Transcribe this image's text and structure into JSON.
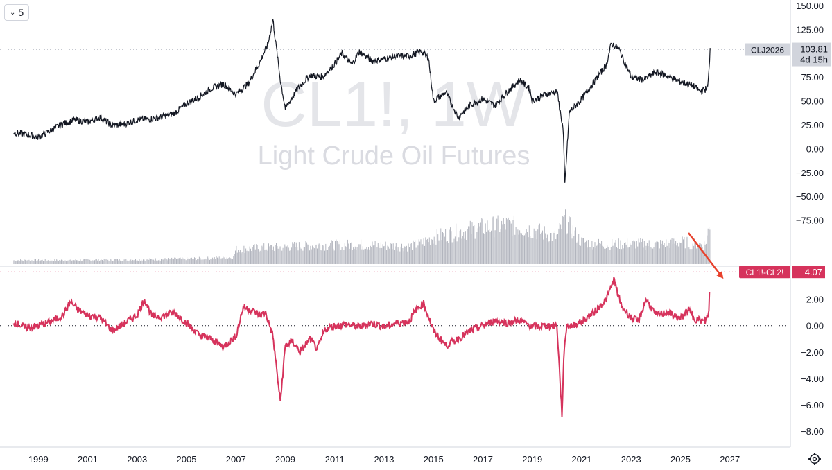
{
  "toolbar": {
    "interval_label": "5"
  },
  "watermark": {
    "symbol": "CL1!, 1W",
    "name": "Light Crude Oil Futures"
  },
  "colors": {
    "price_line": "#131722",
    "volume": "#b2b5be",
    "spread_line": "#d6335c",
    "arrow": "#e8412c",
    "axis_text": "#131722",
    "grid": "#e0e3eb"
  },
  "icons": {
    "interval": "chevron-down-icon",
    "settings": "gear-icon",
    "annotation": "arrow-icon"
  },
  "chart_data": [
    {
      "type": "line",
      "pane": "price",
      "series": [
        {
          "symbol": "CLJ2026",
          "last_value": "103.81",
          "countdown": "4d 15h",
          "x": [
            1998.0,
            1998.5,
            1999.0,
            1999.5,
            2000.0,
            2000.5,
            2001.0,
            2001.5,
            2002.0,
            2002.5,
            2003.0,
            2003.5,
            2004.0,
            2004.5,
            2005.0,
            2005.5,
            2006.0,
            2006.5,
            2007.0,
            2007.5,
            2008.0,
            2008.3,
            2008.5,
            2008.8,
            2009.0,
            2009.5,
            2010.0,
            2010.5,
            2011.0,
            2011.3,
            2011.7,
            2012.0,
            2012.5,
            2013.0,
            2013.5,
            2014.0,
            2014.5,
            2014.8,
            2015.0,
            2015.5,
            2016.0,
            2016.5,
            2017.0,
            2017.5,
            2018.0,
            2018.5,
            2018.9,
            2019.0,
            2019.5,
            2020.0,
            2020.25,
            2020.32,
            2020.5,
            2021.0,
            2021.5,
            2022.0,
            2022.2,
            2022.5,
            2023.0,
            2023.5,
            2024.0,
            2024.5,
            2025.0,
            2025.5,
            2025.8,
            2026.0,
            2026.1,
            2026.18,
            2026.2
          ],
          "values": [
            17,
            15,
            12,
            19,
            26,
            30,
            28,
            33,
            24,
            26,
            30,
            31,
            33,
            37,
            47,
            54,
            63,
            68,
            57,
            68,
            92,
            110,
            135,
            72,
            42,
            63,
            77,
            75,
            89,
            100,
            88,
            102,
            92,
            94,
            97,
            97,
            102,
            95,
            50,
            59,
            33,
            46,
            52,
            45,
            60,
            72,
            62,
            50,
            57,
            60,
            20,
            -37,
            38,
            52,
            70,
            88,
            110,
            105,
            75,
            72,
            80,
            76,
            70,
            66,
            60,
            62,
            65,
            90,
            104
          ]
        }
      ],
      "ylim": [
        -100,
        150
      ],
      "yticks": [
        "150.00",
        "125.00",
        "100.00",
        "75.00",
        "50.00",
        "25.00",
        "0.00",
        "−25.00",
        "−50.00",
        "−75.00"
      ],
      "ytick_values": [
        150,
        125,
        100,
        75,
        50,
        25,
        0,
        -25,
        -50,
        -75
      ],
      "xticks": [
        "1999",
        "2001",
        "2003",
        "2005",
        "2007",
        "2009",
        "2011",
        "2013",
        "2015",
        "2017",
        "2019",
        "2021",
        "2023",
        "2025",
        "2027"
      ],
      "xtick_values": [
        1999,
        2001,
        2003,
        2005,
        2007,
        2009,
        2011,
        2013,
        2015,
        2017,
        2019,
        2021,
        2023,
        2025,
        2027
      ],
      "xlim": [
        1997.45,
        2029.45
      ]
    },
    {
      "type": "bar",
      "pane": "volume",
      "series": [
        {
          "name": "volume",
          "x": [
            1998,
            2000,
            2002,
            2004,
            2006,
            2006.9,
            2007,
            2008,
            2010,
            2012,
            2014,
            2014.5,
            2015,
            2016,
            2017,
            2018,
            2019,
            2020,
            2020.3,
            2021,
            2022,
            2023,
            2024,
            2025,
            2026,
            2026.2
          ],
          "values": [
            0.08,
            0.08,
            0.09,
            0.1,
            0.12,
            0.14,
            0.3,
            0.33,
            0.38,
            0.4,
            0.36,
            0.42,
            0.55,
            0.65,
            0.75,
            0.8,
            0.7,
            0.55,
            0.9,
            0.45,
            0.4,
            0.42,
            0.4,
            0.45,
            0.4,
            0.85
          ]
        }
      ]
    },
    {
      "type": "line",
      "pane": "spread",
      "series": [
        {
          "name": "CL1!-CL2!",
          "last_value": "4.07",
          "x": [
            1998.0,
            1998.5,
            1999.0,
            1999.5,
            2000.0,
            2000.3,
            2000.6,
            2001.0,
            2001.5,
            2002.0,
            2002.5,
            2003.0,
            2003.3,
            2003.6,
            2004.0,
            2004.5,
            2005.0,
            2005.5,
            2006.0,
            2006.5,
            2007.0,
            2007.3,
            2007.6,
            2008.0,
            2008.2,
            2008.5,
            2008.8,
            2009.0,
            2009.3,
            2009.6,
            2010.0,
            2010.3,
            2010.6,
            2011.0,
            2011.5,
            2012.0,
            2012.5,
            2013.0,
            2013.5,
            2014.0,
            2014.3,
            2014.6,
            2015.0,
            2015.5,
            2016.0,
            2016.5,
            2017.0,
            2017.5,
            2018.0,
            2018.5,
            2019.0,
            2019.5,
            2020.0,
            2020.2,
            2020.3,
            2020.4,
            2020.6,
            2021.0,
            2021.5,
            2022.0,
            2022.3,
            2022.6,
            2023.0,
            2023.3,
            2023.6,
            2024.0,
            2024.5,
            2025.0,
            2025.3,
            2025.6,
            2026.0,
            2026.15,
            2026.2
          ],
          "values": [
            0.3,
            -0.2,
            0.0,
            0.3,
            0.8,
            1.8,
            1.2,
            0.8,
            0.6,
            -0.4,
            0.2,
            0.8,
            2.0,
            0.7,
            0.7,
            1.0,
            0.2,
            -0.7,
            -1.0,
            -1.6,
            -0.8,
            1.4,
            1.2,
            0.8,
            1.0,
            -0.8,
            -5.8,
            -1.5,
            -1.2,
            -2.0,
            -1.0,
            -1.8,
            -0.3,
            0.0,
            0.1,
            -0.1,
            0.2,
            -0.1,
            0.2,
            0.3,
            1.2,
            1.7,
            -0.4,
            -1.5,
            -1.0,
            -0.4,
            0.0,
            0.4,
            0.2,
            0.4,
            -0.1,
            0.0,
            0.0,
            -6.7,
            -1.5,
            0.0,
            0.0,
            0.3,
            1.0,
            2.0,
            3.5,
            1.5,
            0.6,
            0.3,
            2.0,
            0.8,
            1.0,
            0.5,
            1.2,
            0.5,
            0.3,
            1.0,
            4.07
          ]
        }
      ],
      "ylim": [
        -9.2,
        4.5
      ],
      "yticks": [
        "2.00",
        "0.00",
        "−2.00",
        "−4.00",
        "−6.00",
        "−8.00"
      ],
      "ytick_values": [
        2,
        0,
        -2,
        -4,
        -6,
        -8
      ]
    }
  ]
}
